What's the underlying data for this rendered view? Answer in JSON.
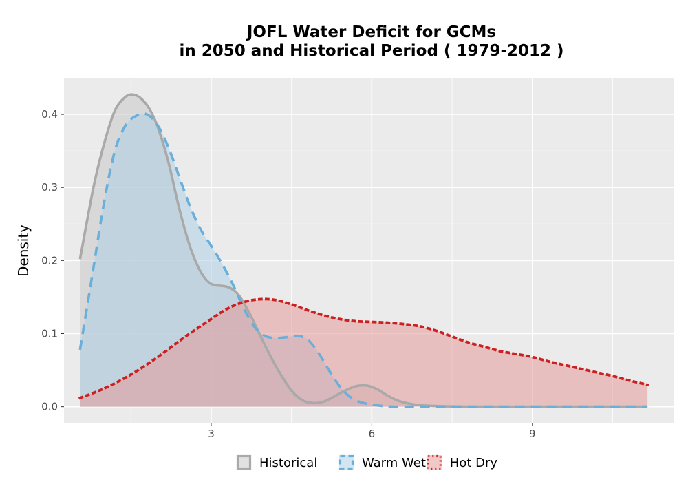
{
  "chart_data": {
    "type": "area",
    "title_line1": "JOFL  Water Deficit for GCMs",
    "title_line2": "in 2050 and Historical Period ( 1979-2012 )",
    "xlabel": "",
    "ylabel": "Density",
    "xlim": [
      0.25,
      11.65
    ],
    "ylim": [
      -0.022,
      0.45
    ],
    "x_ticks": [
      3,
      6,
      9
    ],
    "y_ticks": [
      0.0,
      0.1,
      0.2,
      0.3,
      0.4
    ],
    "y_tick_labels": [
      "0.0",
      "0.1",
      "0.2",
      "0.3",
      "0.4"
    ],
    "grid": true,
    "legend_position": "bottom",
    "series": [
      {
        "name": "Historical",
        "fill": "#c8c8c8",
        "line_color": "#a9a9a9",
        "line_style": "solid",
        "x": [
          0.55,
          0.8,
          1.0,
          1.2,
          1.4,
          1.55,
          1.7,
          1.85,
          2.0,
          2.2,
          2.4,
          2.6,
          2.8,
          3.0,
          3.3,
          3.5,
          3.7,
          3.9,
          4.1,
          4.3,
          4.5,
          4.7,
          4.9,
          5.1,
          5.3,
          5.5,
          5.7,
          5.9,
          6.1,
          6.3,
          6.5,
          6.8,
          7.2,
          8.0,
          9.0,
          10.0,
          11.15
        ],
        "y": [
          0.202,
          0.3,
          0.36,
          0.405,
          0.424,
          0.427,
          0.421,
          0.407,
          0.383,
          0.335,
          0.272,
          0.22,
          0.185,
          0.168,
          0.164,
          0.154,
          0.13,
          0.1,
          0.07,
          0.044,
          0.022,
          0.009,
          0.005,
          0.007,
          0.014,
          0.022,
          0.028,
          0.029,
          0.024,
          0.015,
          0.008,
          0.003,
          0.001,
          0.0,
          0.0,
          0.0,
          0.0
        ]
      },
      {
        "name": "Warm Wet",
        "fill": "#aecfe4",
        "line_color": "#6aafda",
        "line_style": "dashed",
        "x": [
          0.55,
          0.8,
          1.0,
          1.2,
          1.4,
          1.6,
          1.8,
          2.0,
          2.2,
          2.4,
          2.6,
          2.8,
          3.0,
          3.2,
          3.4,
          3.6,
          3.8,
          4.0,
          4.2,
          4.4,
          4.6,
          4.8,
          5.0,
          5.2,
          5.4,
          5.6,
          5.8,
          6.0,
          6.2,
          6.4,
          6.6,
          7.0,
          8.0,
          9.0,
          10.0,
          11.15
        ],
        "y": [
          0.078,
          0.19,
          0.28,
          0.35,
          0.385,
          0.398,
          0.4,
          0.385,
          0.355,
          0.315,
          0.275,
          0.243,
          0.22,
          0.196,
          0.168,
          0.136,
          0.11,
          0.097,
          0.094,
          0.095,
          0.097,
          0.092,
          0.074,
          0.05,
          0.028,
          0.013,
          0.006,
          0.003,
          0.001,
          0.0,
          0.0,
          0.0,
          0.0,
          0.0,
          0.0,
          0.0
        ]
      },
      {
        "name": "Hot Dry",
        "fill": "#e49a9a",
        "line_color": "#cc1f1f",
        "line_style": "dotted",
        "x": [
          0.55,
          1.0,
          1.5,
          2.0,
          2.5,
          3.0,
          3.3,
          3.6,
          3.9,
          4.2,
          4.5,
          4.8,
          5.1,
          5.4,
          5.7,
          6.0,
          6.3,
          6.6,
          6.9,
          7.2,
          7.5,
          7.8,
          8.1,
          8.4,
          8.7,
          9.0,
          9.3,
          9.6,
          9.9,
          10.2,
          10.5,
          10.8,
          11.15
        ],
        "y": [
          0.012,
          0.025,
          0.044,
          0.068,
          0.095,
          0.12,
          0.134,
          0.143,
          0.147,
          0.146,
          0.14,
          0.132,
          0.125,
          0.12,
          0.117,
          0.116,
          0.115,
          0.113,
          0.11,
          0.104,
          0.096,
          0.088,
          0.082,
          0.076,
          0.072,
          0.068,
          0.062,
          0.057,
          0.052,
          0.047,
          0.042,
          0.036,
          0.03
        ]
      }
    ]
  }
}
